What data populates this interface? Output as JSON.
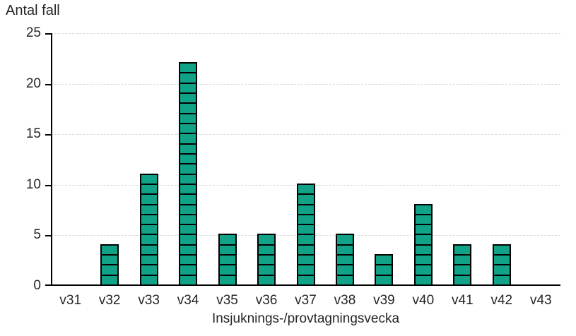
{
  "chart_data": {
    "type": "bar",
    "title": "Antal fall",
    "xlabel": "Insjuknings-/provtagningsvecka",
    "ylabel": "",
    "categories": [
      "v31",
      "v32",
      "v33",
      "v34",
      "v35",
      "v36",
      "v37",
      "v38",
      "v39",
      "v40",
      "v41",
      "v42",
      "v43"
    ],
    "values": [
      0,
      4,
      11,
      22,
      5,
      5,
      10,
      5,
      3,
      8,
      4,
      4,
      0
    ],
    "ylim": [
      0,
      25
    ],
    "yticks": [
      0,
      5,
      10,
      15,
      20,
      25
    ],
    "grid": true,
    "legend": "none",
    "bar_style": "segmented-unit-blocks",
    "colors": {
      "bar_fill": "#11A388",
      "bar_border": "#000000",
      "gridline": "#D9D9D9",
      "axis": "#000000",
      "text": "#262626",
      "background": "#FFFFFF"
    }
  }
}
